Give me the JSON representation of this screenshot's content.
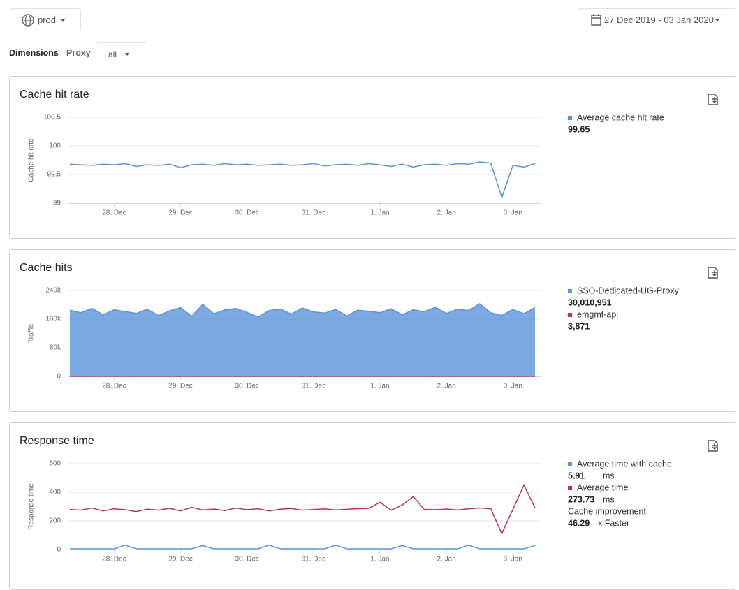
{
  "toolbar": {
    "environment": "prod",
    "date_range": "27 Dec 2019 - 03 Jan 2020"
  },
  "filters": {
    "label": "Dimensions",
    "proxy_label": "Proxy",
    "proxy_value": "all"
  },
  "chart_data": [
    {
      "type": "line",
      "title": "Cache hit rate",
      "y_label": "Cache hit rate",
      "categories": [
        null,
        null,
        null,
        null,
        "28. Dec",
        null,
        null,
        null,
        null,
        null,
        "29. Dec",
        null,
        null,
        null,
        null,
        null,
        "30. Dec",
        null,
        null,
        null,
        null,
        null,
        "31. Dec",
        null,
        null,
        null,
        null,
        null,
        "1. Jan",
        null,
        null,
        null,
        null,
        null,
        "2. Jan",
        null,
        null,
        null,
        null,
        null,
        "3. Jan",
        null,
        null
      ],
      "series": [
        {
          "name": "Average cache hit rate",
          "color": "#5b93d9",
          "summary": 99.65,
          "values": [
            99.68,
            99.67,
            99.66,
            99.68,
            99.67,
            99.69,
            99.64,
            99.67,
            99.66,
            99.68,
            99.62,
            99.67,
            99.68,
            99.66,
            99.69,
            99.67,
            99.68,
            99.66,
            99.67,
            99.68,
            99.66,
            99.67,
            99.69,
            99.65,
            99.67,
            99.68,
            99.66,
            99.69,
            99.67,
            99.64,
            99.68,
            99.63,
            99.67,
            99.68,
            99.66,
            99.69,
            99.68,
            99.72,
            99.7,
            99.1,
            99.66,
            99.63,
            99.69
          ]
        }
      ],
      "ylim": [
        99,
        100.5
      ],
      "yticks": [
        99,
        99.5,
        100,
        100.5
      ],
      "grid": true
    },
    {
      "type": "area",
      "title": "Cache hits",
      "y_label": "Traffic",
      "categories": [
        null,
        null,
        null,
        null,
        "28. Dec",
        null,
        null,
        null,
        null,
        null,
        "29. Dec",
        null,
        null,
        null,
        null,
        null,
        "30. Dec",
        null,
        null,
        null,
        null,
        null,
        "31. Dec",
        null,
        null,
        null,
        null,
        null,
        "1. Jan",
        null,
        null,
        null,
        null,
        null,
        "2. Jan",
        null,
        null,
        null,
        null,
        null,
        "3. Jan",
        null,
        null
      ],
      "series": [
        {
          "name": "SSO-Dedicated-UG-Proxy",
          "color": "#5b93d9",
          "summary": {
            "value": 30010951,
            "label": "30,010,951"
          },
          "values": [
            185000,
            178000,
            190000,
            172000,
            186000,
            181000,
            176000,
            188000,
            170000,
            183000,
            192000,
            168000,
            201000,
            175000,
            186000,
            190000,
            179000,
            166000,
            184000,
            188000,
            174000,
            191000,
            180000,
            177000,
            187000,
            169000,
            185000,
            182000,
            178000,
            189000,
            172000,
            186000,
            181000,
            193000,
            176000,
            188000,
            184000,
            203000,
            178000,
            170000,
            187000,
            175000,
            192000
          ]
        },
        {
          "name": "emgmt-api",
          "color": "#b5336a",
          "summary": {
            "value": 3871,
            "label": "3,871"
          },
          "values": [
            90,
            90,
            90,
            90,
            90,
            90,
            90,
            90,
            90,
            90,
            90,
            90,
            90,
            90,
            90,
            90,
            90,
            90,
            90,
            90,
            90,
            90,
            90,
            90,
            90,
            90,
            90,
            90,
            90,
            90,
            90,
            90,
            90,
            90,
            90,
            90,
            90,
            90,
            90,
            90,
            90,
            90,
            90
          ]
        }
      ],
      "ylim": [
        0,
        240000
      ],
      "yticks": [
        0,
        {
          "value": 80000,
          "label": "80k"
        },
        {
          "value": 160000,
          "label": "160k"
        },
        {
          "value": 240000,
          "label": "240k"
        }
      ],
      "grid": true
    },
    {
      "type": "line",
      "title": "Response time",
      "y_label": "Response time",
      "categories": [
        null,
        null,
        null,
        null,
        "28. Dec",
        null,
        null,
        null,
        null,
        null,
        "29. Dec",
        null,
        null,
        null,
        null,
        null,
        "30. Dec",
        null,
        null,
        null,
        null,
        null,
        "31. Dec",
        null,
        null,
        null,
        null,
        null,
        "1. Jan",
        null,
        null,
        null,
        null,
        null,
        "2. Jan",
        null,
        null,
        null,
        null,
        null,
        "3. Jan",
        null,
        null
      ],
      "series": [
        {
          "name": "Average time with cache",
          "color": "#5b93d9",
          "summary": 5.91,
          "unit": "ms",
          "values": [
            5,
            5,
            5,
            5,
            5,
            30,
            5,
            5,
            5,
            5,
            5,
            5,
            28,
            5,
            5,
            5,
            5,
            5,
            30,
            5,
            5,
            5,
            5,
            5,
            30,
            5,
            5,
            5,
            5,
            5,
            28,
            5,
            5,
            5,
            5,
            5,
            30,
            5,
            5,
            5,
            5,
            5,
            28
          ]
        },
        {
          "name": "Average time",
          "color": "#b5336a",
          "summary": 273.73,
          "unit": "ms",
          "values": [
            280,
            275,
            290,
            270,
            285,
            278,
            265,
            282,
            275,
            288,
            270,
            295,
            276,
            283,
            272,
            290,
            278,
            285,
            270,
            282,
            287,
            275,
            280,
            284,
            276,
            281,
            285,
            288,
            330,
            275,
            310,
            370,
            280,
            278,
            283,
            276,
            285,
            290,
            285,
            110,
            280,
            450,
            290
          ]
        }
      ],
      "extra": {
        "label": "Cache improvement",
        "value": 46.29,
        "unit": "x Faster"
      },
      "ylim": [
        0,
        600
      ],
      "yticks": [
        0,
        200,
        400,
        600
      ],
      "grid": true
    }
  ]
}
